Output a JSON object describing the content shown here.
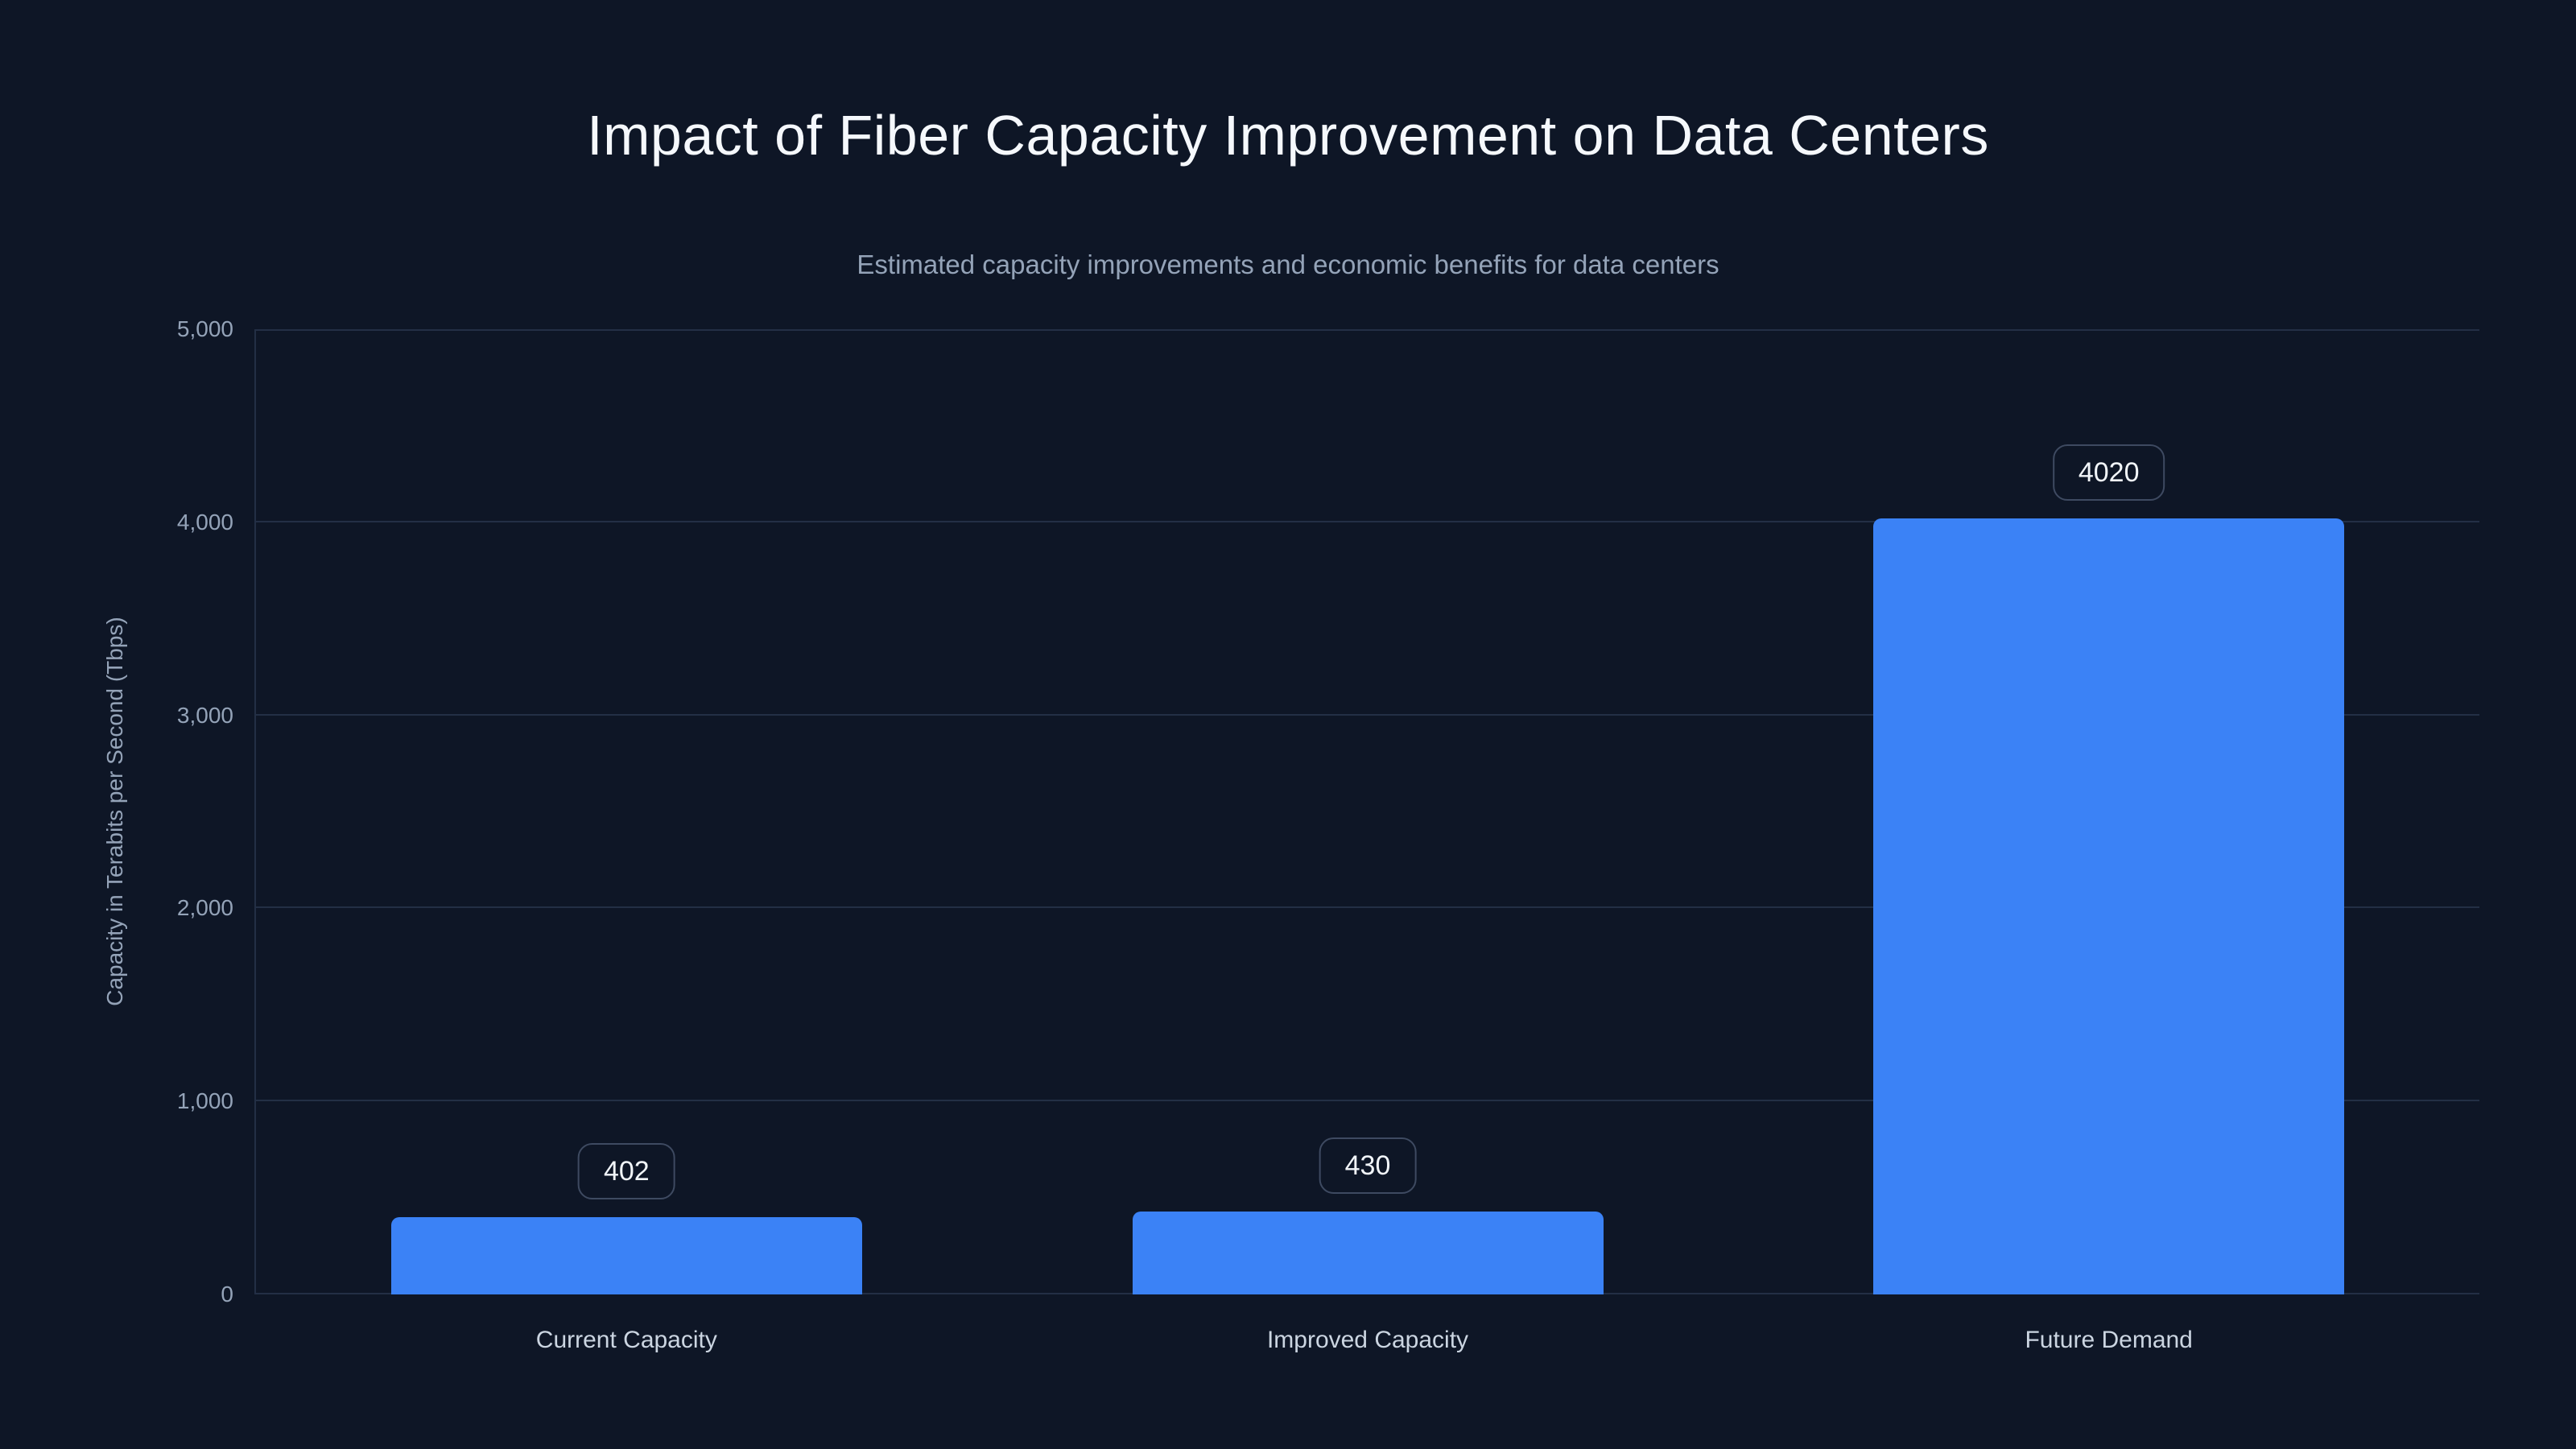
{
  "chart_data": {
    "type": "bar",
    "title": "Impact of Fiber Capacity Improvement on Data Centers",
    "subtitle": "Estimated capacity improvements and economic benefits for data centers",
    "categories": [
      "Current Capacity",
      "Improved Capacity",
      "Future Demand"
    ],
    "values": [
      402,
      430,
      4020
    ],
    "value_labels": [
      "402",
      "430",
      "4020"
    ],
    "xlabel": "",
    "ylabel": "Capacity in Terabits per Second (Tbps)",
    "ylim": [
      0,
      5000
    ],
    "ytick_interval": 1000,
    "ytick_labels": [
      "0",
      "1,000",
      "2,000",
      "3,000",
      "4,000",
      "5,000"
    ],
    "grid": "horizontal",
    "legend_position": "none",
    "colors": {
      "background": "#0e1626",
      "bar": "#3b82f6",
      "gridline": "#232f45",
      "axis_line": "#232f45",
      "title_text": "#f5f8fc",
      "subtitle_text": "#94a3b8",
      "tick_text": "#94a3b8",
      "category_text": "#cbd5e1",
      "badge_border": "#3e4a61",
      "badge_text": "#f1f5f9"
    }
  }
}
